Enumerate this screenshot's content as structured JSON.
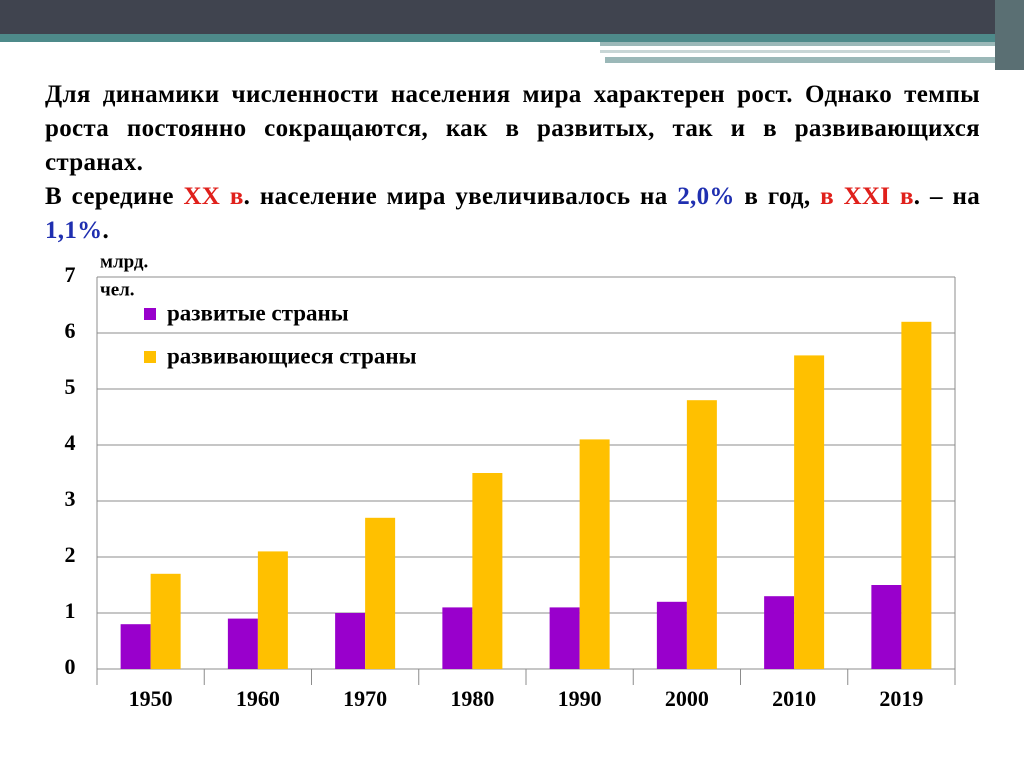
{
  "text": {
    "paragraphs": [
      [
        {
          "text": "Для динамики численности населения мира характерен рост. Однако темпы роста постоянно сокращаются, как в развитых, так и в развивающихся странах.",
          "color": "#000000"
        }
      ],
      [
        {
          "text": "В середине ",
          "color": "#000000"
        },
        {
          "text": "XX в",
          "color": "#e0201b"
        },
        {
          "text": ". население мира увеличивалось на ",
          "color": "#000000"
        },
        {
          "text": "2,0%",
          "color": "#1f2fb0"
        },
        {
          "text": " в год, ",
          "color": "#000000"
        },
        {
          "text": "в XXI в",
          "color": "#e0201b"
        },
        {
          "text": ". – на ",
          "color": "#000000"
        },
        {
          "text": "1,1%",
          "color": "#1f2fb0"
        },
        {
          "text": ".",
          "color": "#000000"
        }
      ]
    ]
  },
  "chart_data": {
    "type": "bar",
    "y_label": [
      "млрд.",
      "чел."
    ],
    "categories": [
      "1950",
      "1960",
      "1970",
      "1980",
      "1990",
      "2000",
      "2010",
      "2019"
    ],
    "series": [
      {
        "name": "развитые страны",
        "color": "#9900cc",
        "values": [
          0.8,
          0.9,
          1.0,
          1.1,
          1.1,
          1.2,
          1.3,
          1.5
        ]
      },
      {
        "name": "развивающиеся страны",
        "color": "#ffc000",
        "values": [
          1.7,
          2.1,
          2.7,
          3.5,
          4.1,
          4.8,
          5.6,
          6.2
        ]
      }
    ],
    "ylim": [
      0,
      7
    ],
    "yticks": [
      0,
      1,
      2,
      3,
      4,
      5,
      6,
      7
    ],
    "grid": true
  }
}
